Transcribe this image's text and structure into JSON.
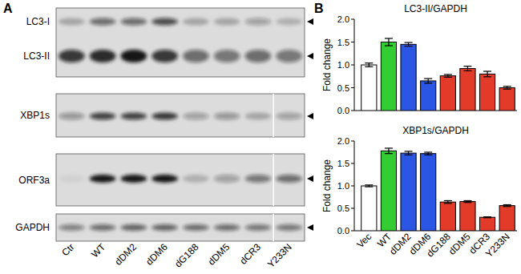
{
  "panel_labels": [
    "A",
    "B"
  ],
  "blot": {
    "lanes": [
      "Ctr",
      "WT",
      "dDM2",
      "dDM6",
      "dG188",
      "dDM5",
      "dCR3",
      "Y233N"
    ],
    "panels": [
      {
        "separator": false,
        "bands": [
          {
            "label": "LC3-I",
            "intensity": [
              0.25,
              0.55,
              0.55,
              0.7,
              0.25,
              0.25,
              0.3,
              0.2
            ]
          },
          {
            "label": "LC3-II",
            "intensity": [
              0.8,
              0.9,
              1.0,
              0.8,
              0.55,
              0.5,
              0.55,
              0.5
            ]
          }
        ]
      },
      {
        "separator": true,
        "bands": [
          {
            "label": "XBP1s",
            "intensity": [
              0.35,
              0.75,
              0.75,
              0.8,
              0.3,
              0.35,
              0.25,
              0.3
            ]
          }
        ]
      },
      {
        "separator": true,
        "bands": [
          {
            "label": "ORF3a",
            "intensity": [
              0.05,
              1.0,
              1.0,
              1.0,
              0.2,
              0.3,
              0.5,
              0.55
            ]
          }
        ]
      },
      {
        "separator": true,
        "bands": [
          {
            "label": "GAPDH",
            "intensity": [
              0.45,
              0.55,
              0.6,
              0.6,
              0.55,
              0.55,
              0.5,
              0.5
            ]
          }
        ]
      }
    ]
  },
  "chart_data": [
    {
      "type": "bar",
      "title": "LC3-II/GAPDH",
      "y_label": "Fold change",
      "categories": [
        "Vec",
        "WT",
        "dDM2",
        "dDM6",
        "dG188",
        "dDM5",
        "dCR3",
        "Y233N"
      ],
      "values": [
        1.0,
        1.5,
        1.45,
        0.65,
        0.76,
        0.92,
        0.8,
        0.5
      ],
      "errors": [
        0.04,
        0.08,
        0.04,
        0.05,
        0.03,
        0.05,
        0.06,
        0.03
      ],
      "colors": [
        "#ffffff",
        "#33cc33",
        "#2b55e3",
        "#2b55e3",
        "#e23b2a",
        "#e23b2a",
        "#e23b2a",
        "#e23b2a"
      ],
      "ylim": [
        0,
        2
      ],
      "yticks": [
        {
          "value": 0,
          "label": "0.0"
        },
        0.5,
        {
          "value": 1,
          "label": "1.0"
        },
        1.5,
        {
          "value": 2,
          "label": "2.0"
        }
      ],
      "tick_labels": "y"
    },
    {
      "type": "bar",
      "title": "XBP1s/GAPDH",
      "y_label": "Fold change",
      "categories": [
        "Vec",
        "WT",
        "dDM2",
        "dDM6",
        "dG188",
        "dDM5",
        "dCR3",
        "Y233N"
      ],
      "values": [
        1.0,
        1.78,
        1.73,
        1.72,
        0.64,
        0.65,
        0.3,
        0.56
      ],
      "errors": [
        0.02,
        0.06,
        0.04,
        0.03,
        0.03,
        0.02,
        0.01,
        0.02
      ],
      "colors": [
        "#ffffff",
        "#33cc33",
        "#2b55e3",
        "#2b55e3",
        "#e23b2a",
        "#e23b2a",
        "#e23b2a",
        "#e23b2a"
      ],
      "ylim": [
        0,
        2
      ],
      "yticks": [
        {
          "value": 0,
          "label": "0.0"
        },
        0.5,
        {
          "value": 1,
          "label": "1.0"
        },
        1.5,
        {
          "value": 2,
          "label": "2.0"
        }
      ]
    }
  ]
}
